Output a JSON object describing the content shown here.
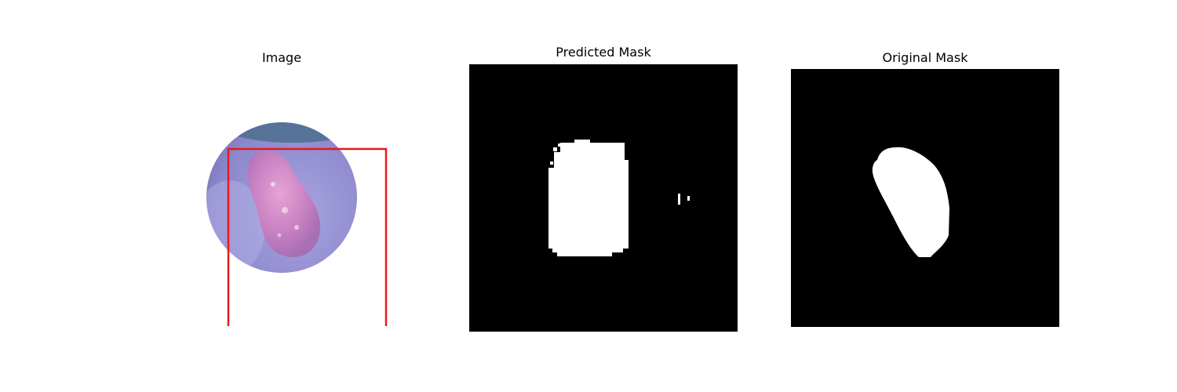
{
  "panels": [
    {
      "title": "Image",
      "content": "endoscopy-image",
      "bbox_color": "#e41a1c"
    },
    {
      "title": "Predicted Mask",
      "content": "binary-mask",
      "mask_color": "#ffffff",
      "background_color": "#000000"
    },
    {
      "title": "Original Mask",
      "content": "binary-mask",
      "mask_color": "#ffffff",
      "background_color": "#000000"
    }
  ]
}
